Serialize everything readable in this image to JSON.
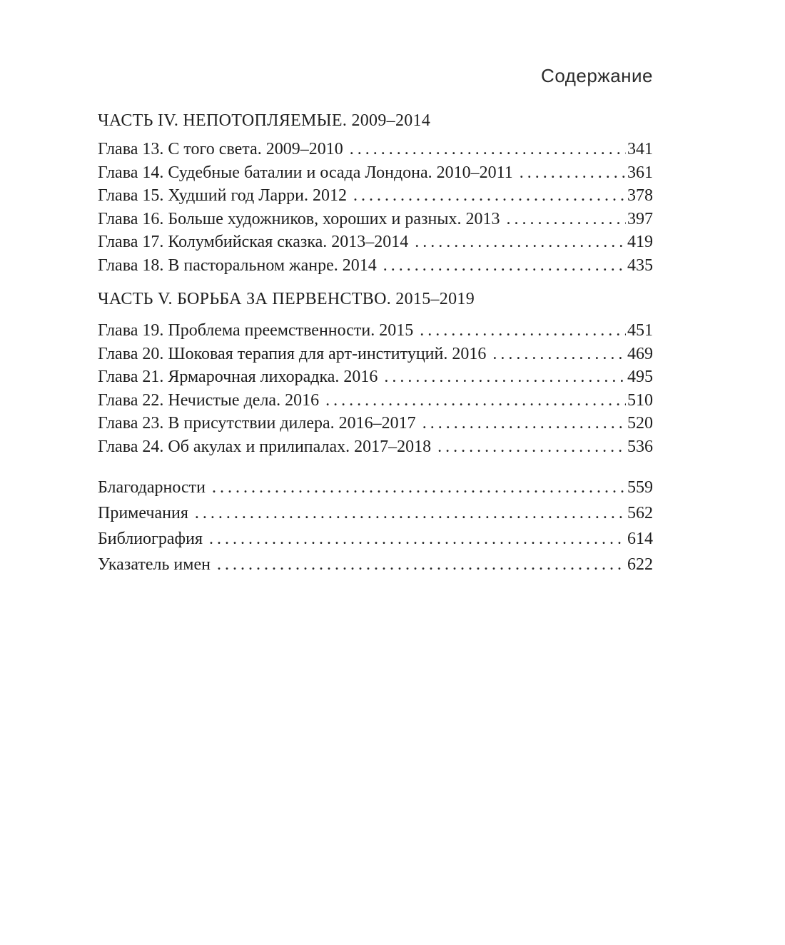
{
  "page": {
    "running_head": "Содержание"
  },
  "colors": {
    "background": "#ffffff",
    "text": "#1e1e1e"
  },
  "toc": {
    "sections": [
      {
        "heading": "ЧАСТЬ IV. НЕПОТОПЛЯЕМЫЕ. 2009–2014",
        "entries": [
          {
            "title": "Глава 13. С того света. 2009–2010",
            "page": "341"
          },
          {
            "title": "Глава 14. Судебные баталии и осада Лондона. 2010–2011",
            "page": "361"
          },
          {
            "title": "Глава 15. Худший год Ларри. 2012",
            "page": "378"
          },
          {
            "title": "Глава 16. Больше художников, хороших и разных. 2013",
            "page": "397"
          },
          {
            "title": "Глава 17. Колумбийская сказка. 2013–2014",
            "page": "419"
          },
          {
            "title": "Глава 18. В пасторальном жанре. 2014",
            "page": "435"
          }
        ]
      },
      {
        "heading": "ЧАСТЬ V. БОРЬБА ЗА ПЕРВЕНСТВО. 2015–2019",
        "entries": [
          {
            "title": "Глава 19. Проблема преемственности. 2015",
            "page": "451"
          },
          {
            "title": "Глава 20. Шоковая терапия для арт-институций. 2016",
            "page": "469"
          },
          {
            "title": "Глава 21. Ярмарочная лихорадка. 2016",
            "page": "495"
          },
          {
            "title": "Глава 22. Нечистые дела. 2016",
            "page": "510"
          },
          {
            "title": "Глава 23. В присутствии дилера. 2016–2017",
            "page": "520"
          },
          {
            "title": "Глава 24. Об акулах и прилипалах. 2017–2018",
            "page": "536"
          }
        ]
      }
    ],
    "backmatter": [
      {
        "title": "Благодарности",
        "page": "559"
      },
      {
        "title": "Примечания",
        "page": "562"
      },
      {
        "title": "Библиография",
        "page": "614"
      },
      {
        "title": "Указатель имен",
        "page": "622"
      }
    ]
  }
}
